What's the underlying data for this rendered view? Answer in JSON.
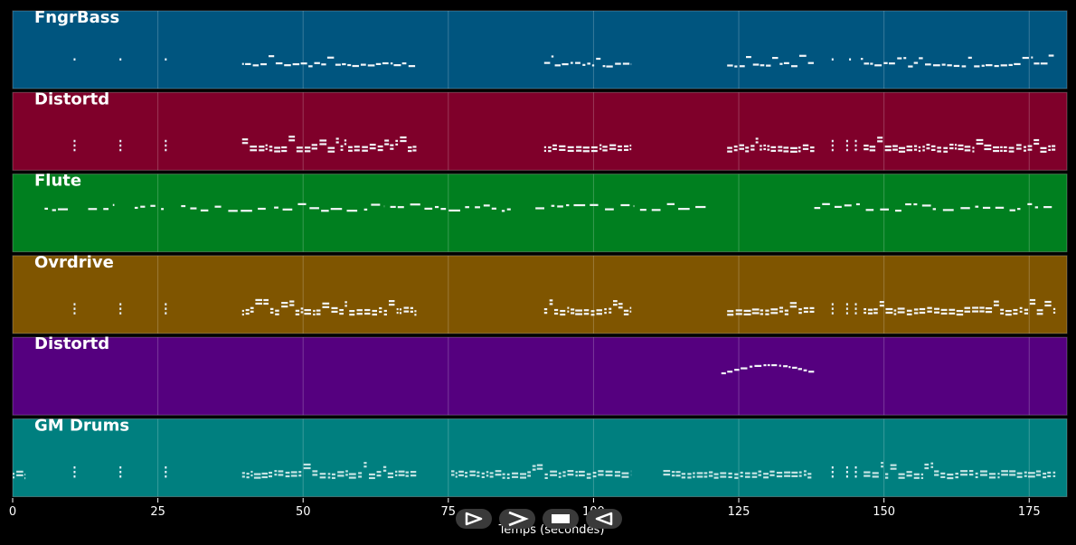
{
  "chart_data": {
    "type": "piano-roll",
    "xlabel": "Temps (secondes)",
    "xlim": [
      0,
      181.5
    ],
    "xticks": [
      0,
      25,
      50,
      75,
      100,
      125,
      150,
      175
    ],
    "grid": true,
    "tracks": [
      {
        "name": "FngrBass",
        "color": "#00557f",
        "segments": [
          [
            10.5,
            10.8
          ],
          [
            18.4,
            18.7
          ],
          [
            26.2,
            26.5
          ],
          [
            39.5,
            69.5
          ],
          [
            91.5,
            106.5
          ],
          [
            123,
            138
          ],
          [
            141,
            141.3
          ],
          [
            144,
            144.3
          ],
          [
            146,
            179.5
          ]
        ]
      },
      {
        "name": "Distortd",
        "color": "#7f002a",
        "segments": [
          [
            10.5,
            10.8
          ],
          [
            18.4,
            18.7
          ],
          [
            26.2,
            26.5
          ],
          [
            39.5,
            69.5
          ],
          [
            91.5,
            106.5
          ],
          [
            123,
            138
          ],
          [
            141,
            141.3
          ],
          [
            143.5,
            143.8
          ],
          [
            145,
            145.3
          ],
          [
            146.5,
            179.5
          ]
        ]
      },
      {
        "name": "Flute",
        "color": "#007f1f",
        "segments": [
          [
            5.5,
            9.5
          ],
          [
            13,
            17.5
          ],
          [
            21,
            26
          ],
          [
            29,
            44
          ],
          [
            45,
            64
          ],
          [
            65,
            86
          ],
          [
            90,
            107
          ],
          [
            108,
            120
          ],
          [
            138,
            179.5
          ]
        ]
      },
      {
        "name": "Ovrdrive",
        "color": "#7f5500",
        "segments": [
          [
            10.5,
            10.8
          ],
          [
            18.4,
            18.7
          ],
          [
            26.2,
            26.5
          ],
          [
            39.5,
            69.5
          ],
          [
            91.5,
            106.5
          ],
          [
            123,
            138
          ],
          [
            141,
            141.3
          ],
          [
            143.5,
            143.8
          ],
          [
            145,
            145.3
          ],
          [
            146.5,
            179.5
          ]
        ]
      },
      {
        "name": "Distortd",
        "color": "#55007f",
        "segments": [
          [
            122,
            138
          ]
        ]
      },
      {
        "name": "GM Drums",
        "color": "#007f7f",
        "segments": [
          [
            0,
            2.2
          ],
          [
            10.5,
            10.8
          ],
          [
            18.4,
            18.7
          ],
          [
            26.2,
            26.5
          ],
          [
            39.5,
            69.5
          ],
          [
            75.5,
            106.5
          ],
          [
            112,
            137.5
          ],
          [
            141,
            141.3
          ],
          [
            143.5,
            143.8
          ],
          [
            145,
            145.3
          ],
          [
            146.5,
            179.5
          ]
        ]
      }
    ]
  },
  "transport": {
    "buttons": [
      {
        "name": "play-button",
        "icon": "play-icon"
      },
      {
        "name": "forward-button",
        "icon": "forward-icon"
      },
      {
        "name": "stop-button",
        "icon": "stop-icon"
      },
      {
        "name": "back-button",
        "icon": "back-icon"
      }
    ]
  }
}
